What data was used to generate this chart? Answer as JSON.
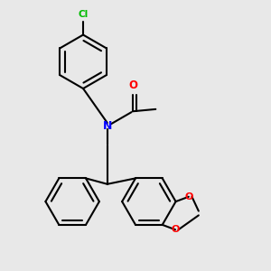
{
  "bg_color": "#e8e8e8",
  "bond_color": "#000000",
  "N_color": "#0000ff",
  "O_color": "#ff0000",
  "Cl_color": "#00bb00",
  "lw": 1.5,
  "r_hex": 0.1,
  "figsize": [
    3.0,
    3.0
  ],
  "dpi": 100,
  "xlim": [
    0.0,
    1.0
  ],
  "ylim": [
    0.0,
    1.0
  ]
}
